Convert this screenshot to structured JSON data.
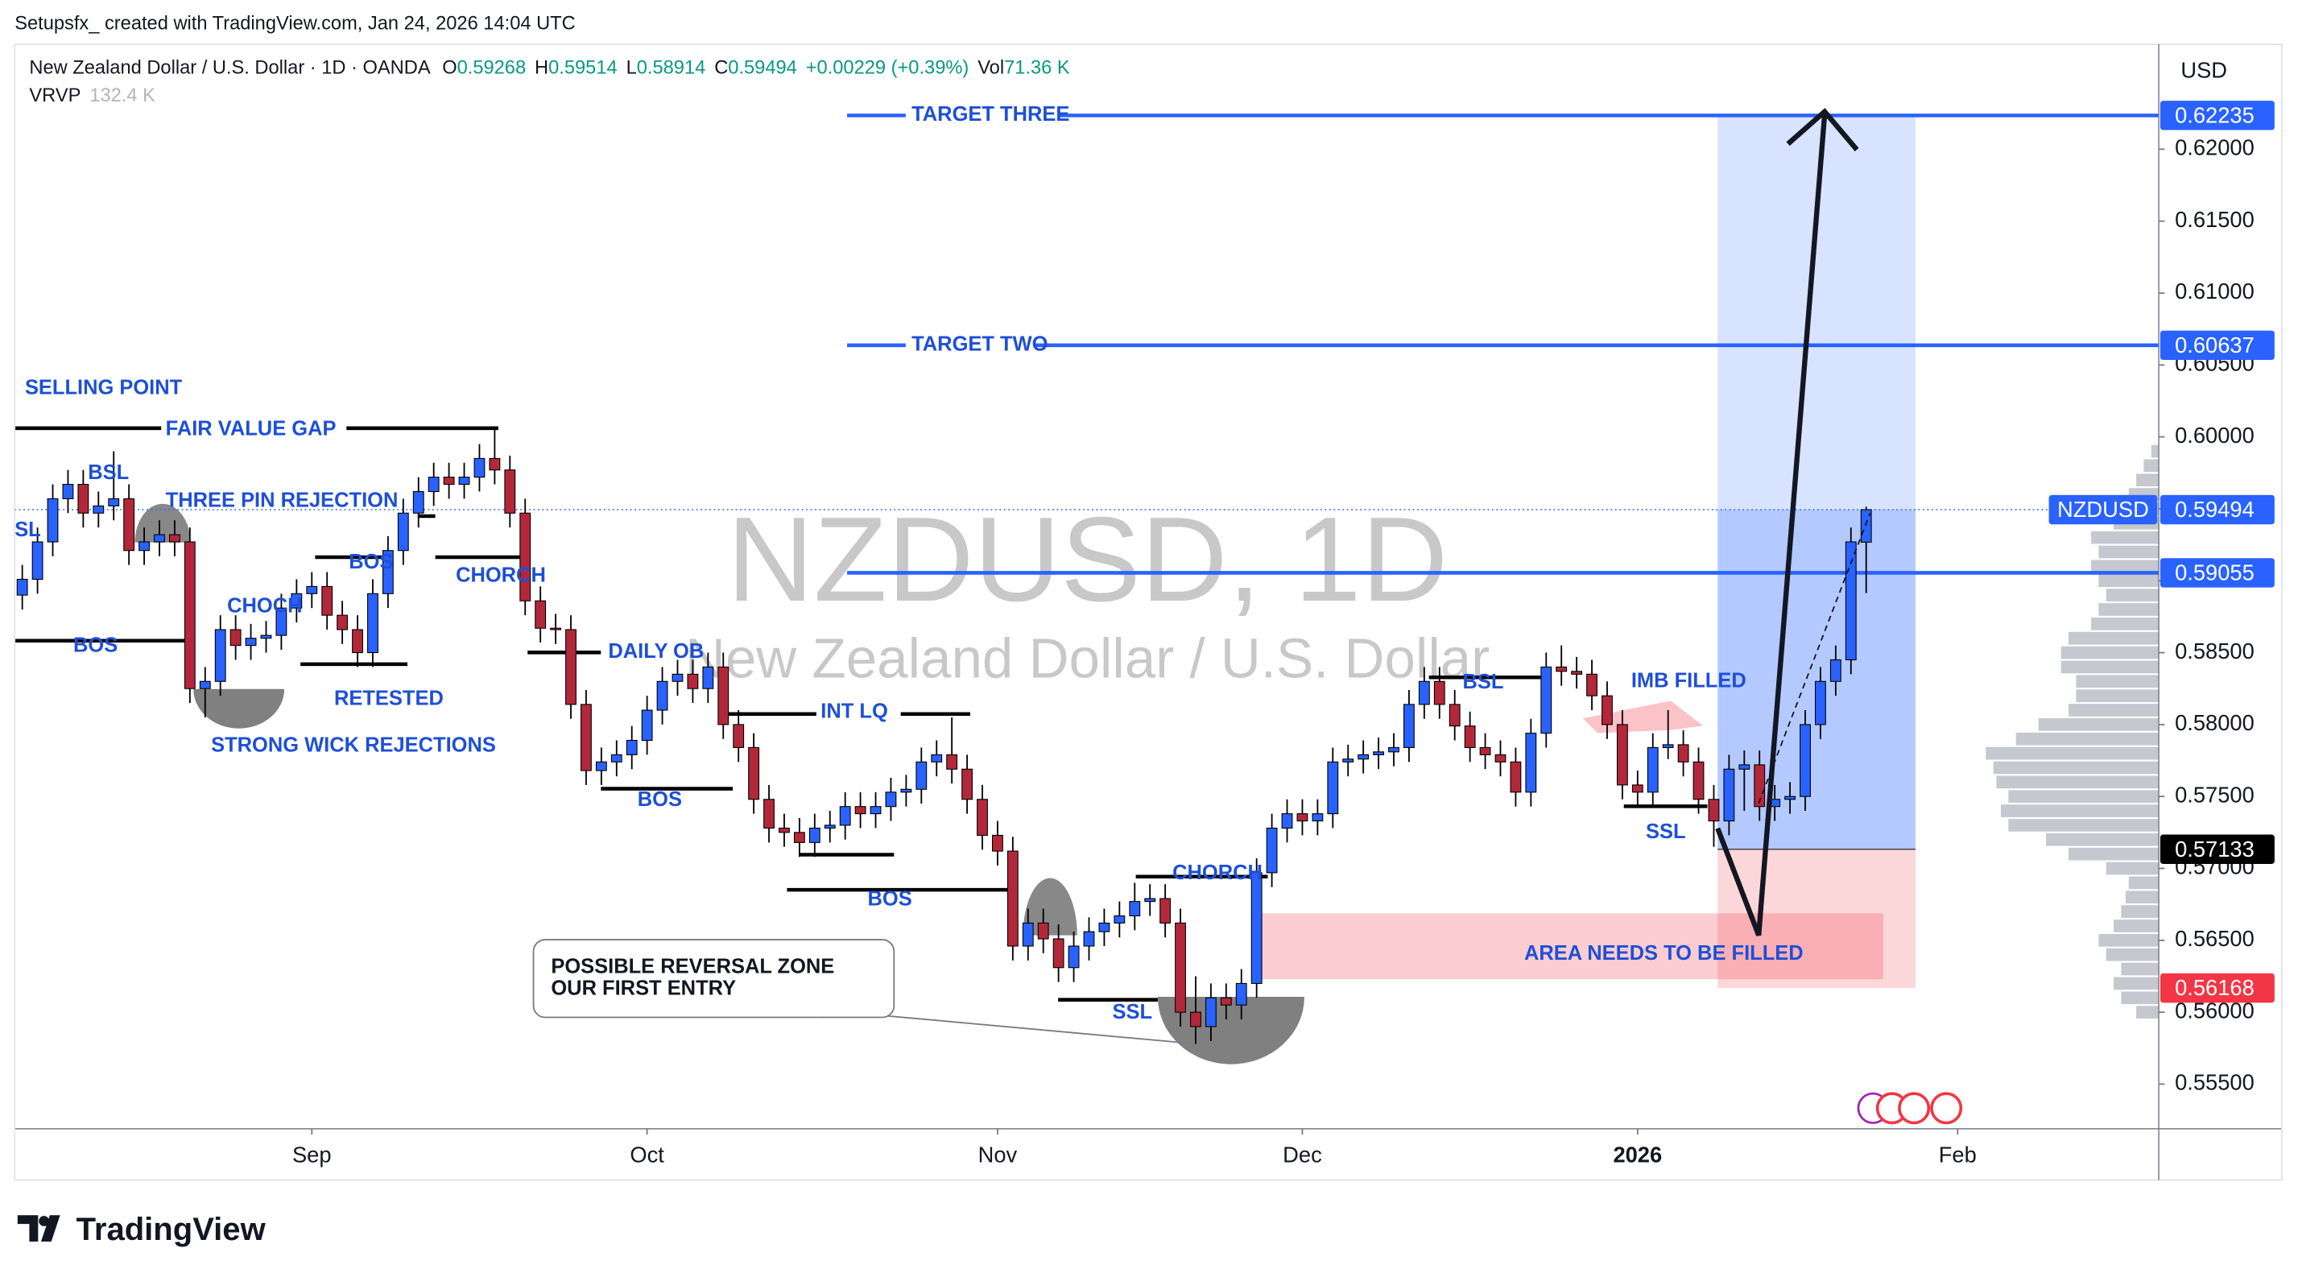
{
  "header": {
    "credit": "Setupsfx_ created with TradingView.com, Jan 24, 2026 14:04 UTC",
    "symbol_line": "New Zealand Dollar / U.S. Dollar · 1D · OANDA",
    "ohlc": [
      {
        "label": "O",
        "value": 0.59268
      },
      {
        "label": "H",
        "value": 0.59514
      },
      {
        "label": "L",
        "value": 0.58914
      },
      {
        "label": "C",
        "value": 0.59494
      }
    ],
    "change": "+0.00229 (+0.39%)",
    "volume_label": "Vol",
    "volume": "71.36 K",
    "indicator": "VRVP",
    "indicator_value": "132.4 K"
  },
  "watermark": {
    "title": "NZDUSD, 1D",
    "subtitle": "New Zealand Dollar / U.S. Dollar"
  },
  "logo": "TradingView",
  "callout": [
    "POSSIBLE REVERSAL ZONE",
    "OUR FIRST ENTRY"
  ],
  "annotations": [
    "SELLING POINT",
    "FAIR VALUE GAP",
    "BSL",
    "SL",
    "THREE PIN REJECTION",
    "CHOCH",
    "BOS",
    "BOS",
    "RETESTED",
    "STRONG WICK REJECTIONS",
    "CHORCH",
    "DAILY OB",
    "INT LQ",
    "BOS",
    "BOS",
    "SSL",
    "CHORCH",
    "BSL",
    "IMB FILLED",
    "SSL",
    "AREA NEEDS TO BE FILLED"
  ],
  "chart_data": {
    "type": "candlestick",
    "currency": "USD",
    "symbol": "NZDUSD",
    "up_color": "#2962ff",
    "down_color": "#b2283a",
    "open": [
      0.589,
      0.5901,
      0.5927,
      0.5957,
      0.5967,
      0.5947,
      0.5952,
      0.5957,
      0.5921,
      0.5927,
      0.5932,
      0.5927,
      0.5825,
      0.583,
      0.5866,
      0.5855,
      0.586,
      0.5862,
      0.5881,
      0.5891,
      0.5896,
      0.5876,
      0.5866,
      0.585,
      0.5891,
      0.5921,
      0.5947,
      0.5962,
      0.5972,
      0.5967,
      0.5972,
      0.5985,
      0.5977,
      0.5947,
      0.5886,
      0.5867,
      0.5866,
      0.5814,
      0.5768,
      0.5774,
      0.5779,
      0.5789,
      0.581,
      0.583,
      0.5835,
      0.5825,
      0.584,
      0.58,
      0.5784,
      0.5748,
      0.5728,
      0.5725,
      0.5718,
      0.5728,
      0.573,
      0.5743,
      0.5738,
      0.5743,
      0.5753,
      0.5755,
      0.5774,
      0.5779,
      0.5769,
      0.5748,
      0.5723,
      0.5712,
      0.5646,
      0.5662,
      0.5651,
      0.5631,
      0.5646,
      0.5656,
      0.5662,
      0.5667,
      0.5677,
      0.5679,
      0.5662,
      0.56,
      0.559,
      0.561,
      0.5605,
      0.562,
      0.5697,
      0.5728,
      0.5738,
      0.5733,
      0.5738,
      0.5774,
      0.5776,
      0.5779,
      0.5781,
      0.5784,
      0.5814,
      0.583,
      0.5814,
      0.5799,
      0.5784,
      0.5779,
      0.5774,
      0.5753,
      0.5794,
      0.584,
      0.5837,
      0.5835,
      0.582,
      0.58,
      0.5758,
      0.5753,
      0.5784,
      0.5786,
      0.5774,
      0.5748,
      0.5733,
      0.5769,
      0.5772,
      0.5743,
      0.5748,
      0.575,
      0.58,
      0.583,
      0.5845,
      0.59268
    ],
    "high": [
      0.5911,
      0.5937,
      0.5967,
      0.5977,
      0.5977,
      0.5962,
      0.599,
      0.5967,
      0.5937,
      0.5942,
      0.5942,
      0.5937,
      0.584,
      0.5876,
      0.5876,
      0.587,
      0.5872,
      0.5891,
      0.5901,
      0.5906,
      0.5906,
      0.5886,
      0.5876,
      0.5901,
      0.5931,
      0.5957,
      0.5972,
      0.5982,
      0.5982,
      0.5982,
      0.5995,
      0.6005,
      0.5987,
      0.5957,
      0.5896,
      0.5877,
      0.5876,
      0.5824,
      0.5784,
      0.5789,
      0.5799,
      0.582,
      0.584,
      0.5845,
      0.5845,
      0.585,
      0.585,
      0.581,
      0.5794,
      0.5758,
      0.5738,
      0.5735,
      0.5738,
      0.574,
      0.5753,
      0.5753,
      0.5753,
      0.5763,
      0.5765,
      0.5784,
      0.5789,
      0.5805,
      0.5779,
      0.5758,
      0.5733,
      0.5722,
      0.5672,
      0.5672,
      0.5661,
      0.5656,
      0.5666,
      0.5672,
      0.5677,
      0.569,
      0.5689,
      0.5689,
      0.5672,
      0.5625,
      0.562,
      0.562,
      0.563,
      0.5707,
      0.5738,
      0.5748,
      0.5748,
      0.5748,
      0.5784,
      0.5786,
      0.5789,
      0.5791,
      0.5794,
      0.5824,
      0.584,
      0.584,
      0.5824,
      0.5809,
      0.5794,
      0.5789,
      0.5784,
      0.5804,
      0.585,
      0.5855,
      0.5847,
      0.5845,
      0.583,
      0.581,
      0.5768,
      0.5794,
      0.581,
      0.5796,
      0.5784,
      0.5758,
      0.5779,
      0.5782,
      0.5782,
      0.5758,
      0.576,
      0.581,
      0.584,
      0.5855,
      0.5937,
      0.59514
    ],
    "low": [
      0.588,
      0.5891,
      0.5917,
      0.5947,
      0.5937,
      0.5937,
      0.5942,
      0.5911,
      0.5911,
      0.5917,
      0.5917,
      0.5815,
      0.5805,
      0.582,
      0.5845,
      0.5845,
      0.585,
      0.5852,
      0.5871,
      0.5881,
      0.5866,
      0.5856,
      0.584,
      0.584,
      0.5881,
      0.5911,
      0.5937,
      0.5952,
      0.5957,
      0.5957,
      0.5962,
      0.5967,
      0.5937,
      0.5876,
      0.5857,
      0.5856,
      0.5804,
      0.5758,
      0.5758,
      0.5764,
      0.5769,
      0.5779,
      0.58,
      0.582,
      0.5815,
      0.5815,
      0.579,
      0.5774,
      0.5738,
      0.5718,
      0.5715,
      0.5708,
      0.5708,
      0.5718,
      0.572,
      0.5728,
      0.5728,
      0.5733,
      0.5743,
      0.5745,
      0.5764,
      0.5759,
      0.5738,
      0.5713,
      0.5702,
      0.5636,
      0.5636,
      0.5641,
      0.5621,
      0.5621,
      0.5636,
      0.5646,
      0.5652,
      0.5657,
      0.5667,
      0.5652,
      0.559,
      0.5578,
      0.558,
      0.5595,
      0.5595,
      0.561,
      0.5687,
      0.5718,
      0.5723,
      0.5723,
      0.5728,
      0.5764,
      0.5766,
      0.5769,
      0.5771,
      0.5774,
      0.5804,
      0.5804,
      0.5789,
      0.5774,
      0.5769,
      0.5764,
      0.5743,
      0.5743,
      0.5784,
      0.5827,
      0.5825,
      0.581,
      0.579,
      0.5748,
      0.5743,
      0.5743,
      0.5776,
      0.5764,
      0.5738,
      0.5715,
      0.5723,
      0.574,
      0.5733,
      0.5733,
      0.5738,
      0.574,
      0.579,
      0.582,
      0.5835,
      0.58914
    ],
    "close": [
      0.5901,
      0.5927,
      0.5957,
      0.5967,
      0.5947,
      0.5952,
      0.5957,
      0.5921,
      0.5927,
      0.5932,
      0.5927,
      0.5825,
      0.583,
      0.5866,
      0.5855,
      0.586,
      0.5862,
      0.5881,
      0.5891,
      0.5896,
      0.5876,
      0.5866,
      0.585,
      0.5891,
      0.5921,
      0.5947,
      0.5962,
      0.5972,
      0.5967,
      0.5972,
      0.5985,
      0.5977,
      0.5947,
      0.5886,
      0.5867,
      0.5866,
      0.5814,
      0.5768,
      0.5774,
      0.5779,
      0.5789,
      0.581,
      0.583,
      0.5835,
      0.5825,
      0.584,
      0.58,
      0.5784,
      0.5748,
      0.5728,
      0.5725,
      0.5718,
      0.5728,
      0.573,
      0.5743,
      0.5738,
      0.5743,
      0.5753,
      0.5755,
      0.5774,
      0.5779,
      0.5769,
      0.5748,
      0.5723,
      0.5712,
      0.5646,
      0.5662,
      0.5651,
      0.5631,
      0.5646,
      0.5656,
      0.5662,
      0.5667,
      0.5677,
      0.5679,
      0.5662,
      0.56,
      0.559,
      0.561,
      0.5605,
      0.562,
      0.5697,
      0.5728,
      0.5738,
      0.5733,
      0.5738,
      0.5774,
      0.5776,
      0.5779,
      0.5781,
      0.5784,
      0.5814,
      0.583,
      0.5814,
      0.5799,
      0.5784,
      0.5779,
      0.5774,
      0.5753,
      0.5794,
      0.584,
      0.5837,
      0.5835,
      0.582,
      0.58,
      0.5758,
      0.5753,
      0.5784,
      0.5786,
      0.5774,
      0.5748,
      0.5733,
      0.5769,
      0.5772,
      0.5743,
      0.5748,
      0.575,
      0.58,
      0.583,
      0.5845,
      0.5927,
      0.59494
    ],
    "xlim": [
      -0.5,
      140.2
    ],
    "xticks": [
      {
        "value": 19,
        "label": "Sep"
      },
      {
        "value": 41,
        "label": "Oct"
      },
      {
        "value": 64,
        "label": "Nov"
      },
      {
        "value": 84,
        "label": "Dec"
      },
      {
        "value": 106,
        "label": "2026"
      },
      {
        "value": 127,
        "label": "Feb"
      }
    ],
    "ylim": [
      0.5519,
      0.6273
    ],
    "yticks": [
      {
        "value": 0.555,
        "label": "0.55500"
      },
      {
        "value": 0.56,
        "label": "0.56000"
      },
      {
        "value": 0.565,
        "label": "0.56500"
      },
      {
        "value": 0.57,
        "label": "0.57000"
      },
      {
        "value": 0.575,
        "label": "0.57500"
      },
      {
        "value": 0.58,
        "label": "0.58000"
      },
      {
        "value": 0.585,
        "label": "0.58500"
      },
      {
        "value": 0.59,
        "label": "0.59000"
      },
      {
        "value": 0.595,
        "label": "0.59500"
      },
      {
        "value": 0.6,
        "label": "0.60000"
      },
      {
        "value": 0.605,
        "label": "0.60500"
      },
      {
        "value": 0.61,
        "label": "0.61000"
      },
      {
        "value": 0.615,
        "label": "0.61500"
      },
      {
        "value": 0.62,
        "label": "0.62000"
      }
    ],
    "levels": [
      {
        "label": "TARGET THREE",
        "value": 0.62235,
        "color": "#2962ff"
      },
      {
        "label": "TARGET TWO",
        "value": 0.60637,
        "color": "#2962ff"
      },
      {
        "value": 0.59055,
        "color": "#2962ff"
      }
    ],
    "position": {
      "entry": 0.57133,
      "stop": 0.56168,
      "entry_color": "#000000",
      "stop_color": "#f23645"
    },
    "volume_profile": {
      "color": "#b2b5be",
      "bins": [
        0.5595,
        0.5605,
        0.5615,
        0.5625,
        0.5635,
        0.5645,
        0.5655,
        0.5665,
        0.5675,
        0.5685,
        0.5695,
        0.5705,
        0.5715,
        0.5725,
        0.5735,
        0.5745,
        0.5755,
        0.5765,
        0.5775,
        0.5785,
        0.5795,
        0.5805,
        0.5815,
        0.5825,
        0.5835,
        0.5845,
        0.5855,
        0.5865,
        0.5875,
        0.5885,
        0.5895,
        0.5905,
        0.5915,
        0.5925,
        0.5935,
        0.5945,
        0.5955,
        0.5965,
        0.5975,
        0.5985,
        0.5995
      ],
      "values": [
        15,
        25,
        30,
        25,
        35,
        40,
        30,
        25,
        22,
        20,
        35,
        60,
        75,
        100,
        105,
        100,
        108,
        110,
        115,
        95,
        80,
        60,
        55,
        55,
        65,
        65,
        60,
        45,
        40,
        35,
        40,
        45,
        40,
        45,
        30,
        25,
        20,
        15,
        10,
        5
      ]
    }
  }
}
